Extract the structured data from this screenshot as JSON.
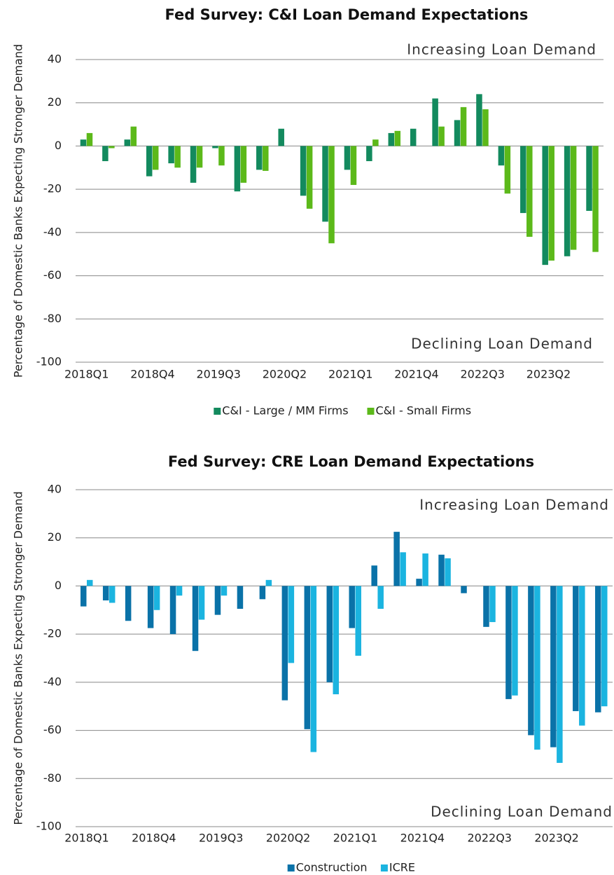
{
  "chart_data": [
    {
      "type": "bar",
      "title": "Fed Survey: C&I Loan Demand Expectations",
      "y_label": "Percentage of Domestic Banks Expecting Stronger Demand",
      "annotations": [
        "Increasing Loan Demand",
        "Declining Loan Demand"
      ],
      "categories": [
        "2018Q1",
        null,
        null,
        "2018Q4",
        null,
        null,
        "2019Q3",
        null,
        null,
        "2020Q2",
        null,
        null,
        "2021Q1",
        null,
        null,
        "2021Q4",
        null,
        null,
        "2022Q3",
        null,
        null,
        "2023Q2",
        null,
        null
      ],
      "series": [
        {
          "name": "C&I - Large / MM Firms",
          "color": "#138a5e",
          "values": [
            3,
            -7,
            3,
            -14,
            -8,
            -17,
            -1,
            -21,
            -11,
            8,
            -23,
            -35,
            -11,
            -7,
            6,
            8,
            22,
            12,
            24,
            -9,
            -31,
            -55,
            -51,
            -30
          ]
        },
        {
          "name": "C&I - Small Firms",
          "color": "#5cb91a",
          "values": [
            6,
            -1,
            9,
            -11,
            -10,
            -10,
            -9,
            -17,
            -11.5,
            null,
            -29,
            -45,
            -18,
            3,
            7,
            null,
            9,
            18,
            17,
            -22,
            -42,
            -53,
            -48,
            -49
          ]
        }
      ],
      "ylim": [
        -100,
        40
      ],
      "yticks": [
        -100,
        -80,
        -60,
        -40,
        -20,
        0,
        20,
        40
      ],
      "grid": true
    },
    {
      "type": "bar",
      "title": "Fed Survey: CRE Loan Demand Expectations",
      "y_label": "Percentage of Domestic Banks Expecting Stronger Demand",
      "annotations": [
        "Increasing Loan Demand",
        "Declining Loan Demand"
      ],
      "categories": [
        "2018Q1",
        null,
        null,
        "2018Q4",
        null,
        null,
        "2019Q3",
        null,
        null,
        "2020Q2",
        null,
        null,
        "2021Q1",
        null,
        null,
        "2021Q4",
        null,
        null,
        "2022Q3",
        null,
        null,
        "2023Q2",
        null,
        null
      ],
      "series": [
        {
          "name": "Construction",
          "color": "#0a72a8",
          "values": [
            -8.5,
            -6,
            -14.5,
            -17.5,
            -20,
            -27,
            -12,
            -9.5,
            -5.5,
            -47.5,
            -59.5,
            -40,
            -17.5,
            8.5,
            22.5,
            3,
            13,
            -3,
            -17,
            -47,
            -62,
            -67,
            -52,
            -52.5
          ]
        },
        {
          "name": "ICRE",
          "color": "#1bb4e0",
          "values": [
            2.5,
            -7,
            null,
            -10,
            -4,
            -14,
            -4,
            null,
            2.5,
            -32,
            -69,
            -45,
            -29,
            -9.5,
            14,
            13.5,
            11.5,
            null,
            -15,
            -45.5,
            -68,
            -73.5,
            -58,
            -50
          ]
        }
      ],
      "ylim": [
        -100,
        40
      ],
      "yticks": [
        -100,
        -80,
        -60,
        -40,
        -20,
        0,
        20,
        40
      ],
      "grid": true
    }
  ]
}
